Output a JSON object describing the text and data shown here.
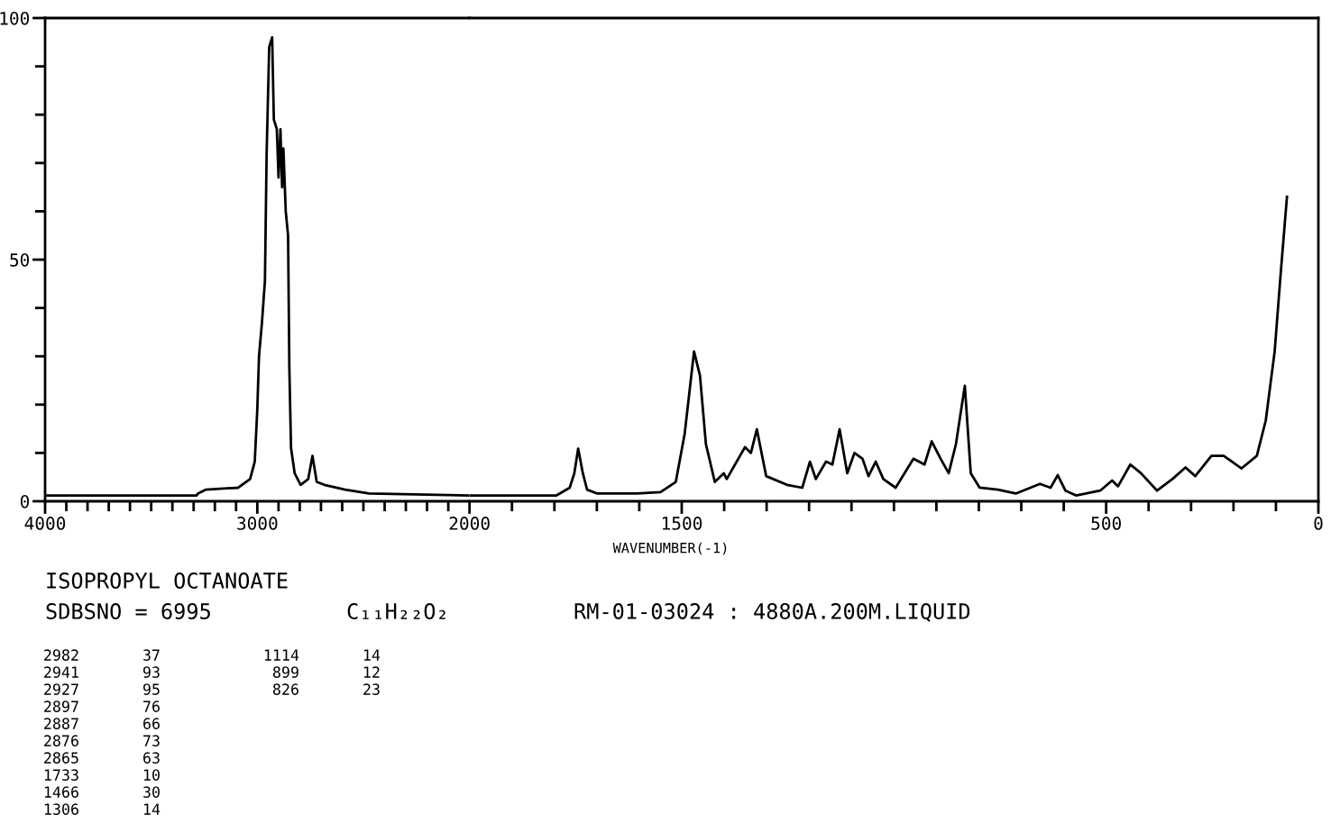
{
  "chart_data": [
    {
      "type": "line",
      "title": "ISOPROPYL OCTANOATE",
      "x": [
        4000,
        3286,
        3280,
        3244,
        3090,
        3034,
        3012,
        3000,
        2992,
        2978,
        2964,
        2956,
        2944,
        2930,
        2922,
        2908,
        2900,
        2891,
        2883,
        2877,
        2866,
        2855,
        2849,
        2841,
        2824,
        2796,
        2760,
        2740,
        2720,
        2684,
        2586,
        2474,
        2000
      ],
      "series": [
        {
          "color": "#000000",
          "values": [
            1.2,
            1.2,
            1.6,
            2.4,
            2.8,
            4.6,
            8.2,
            19,
            30,
            37,
            45.7,
            72,
            94,
            96,
            79,
            77,
            67,
            77,
            65,
            73,
            60,
            55,
            27.5,
            11,
            5.8,
            3.4,
            4.6,
            9.4,
            4,
            3.4,
            2.4,
            1.6,
            1.2
          ]
        }
      ],
      "xlim": [
        4000,
        2000
      ],
      "xticks": [
        4000,
        {
          "value": 3900,
          "label": null
        },
        {
          "value": 3800,
          "label": null
        },
        {
          "value": 3700,
          "label": null
        },
        {
          "value": 3600,
          "label": null
        },
        {
          "value": 3500,
          "label": null
        },
        {
          "value": 3400,
          "label": null
        },
        {
          "value": 3300,
          "label": null
        },
        {
          "value": 3200,
          "label": null
        },
        {
          "value": 3100,
          "label": null
        },
        3000,
        {
          "value": 2900,
          "label": null
        },
        {
          "value": 2800,
          "label": null
        },
        {
          "value": 2700,
          "label": null
        },
        {
          "value": 2600,
          "label": null
        },
        {
          "value": 2500,
          "label": null
        },
        {
          "value": 2400,
          "label": null
        },
        {
          "value": 2300,
          "label": null
        },
        {
          "value": 2200,
          "label": null
        },
        {
          "value": 2100,
          "label": null
        },
        2000
      ],
      "ylim": [
        0,
        100
      ],
      "yticks": [
        0,
        {
          "value": 10,
          "label": null
        },
        {
          "value": 20,
          "label": null
        },
        {
          "value": 30,
          "label": null
        },
        {
          "value": 40,
          "label": null
        },
        50,
        {
          "value": 60,
          "label": null
        },
        {
          "value": 70,
          "label": null
        },
        {
          "value": 80,
          "label": null
        },
        {
          "value": 90,
          "label": null
        },
        100
      ],
      "annotations": [
        "SDBSNO = 6995",
        "C₁₁H₂₂O₂",
        "RM-01-03024 : 4880A.200M.LIQUID",
        "2982",
        "37",
        "2941",
        "93",
        "2927",
        "95",
        "2897",
        "76",
        "2887",
        "66",
        "2876",
        "73",
        "2865",
        "63",
        "1733",
        "10",
        "1466",
        "30",
        "1306",
        "14",
        "1114",
        "14",
        "899",
        "12",
        "826",
        "23"
      ]
    },
    {
      "type": "line",
      "xlabel": "WAVENUMBER(-1)",
      "tick_labels": "x",
      "x": [
        2000,
        1795,
        1764,
        1753,
        1744,
        1733,
        1723,
        1699,
        1606,
        1550,
        1514,
        1493,
        1471,
        1457,
        1443,
        1422,
        1401,
        1394,
        1351,
        1337,
        1323,
        1316,
        1301,
        1252,
        1216,
        1198,
        1184,
        1160,
        1145,
        1128,
        1110,
        1093,
        1074,
        1060,
        1043,
        1025,
        996,
        954,
        928,
        911,
        890,
        871,
        854,
        833,
        819,
        798,
        755,
        713,
        656,
        631,
        614,
        596,
        571,
        514,
        486,
        472,
        443,
        418,
        380,
        344,
        313,
        290,
        252,
        223,
        181,
        145,
        124,
        103,
        89,
        74
      ],
      "series": [
        {
          "color": "#000000",
          "values": [
            1.2,
            1.2,
            2.8,
            5.8,
            10.9,
            5.8,
            2.4,
            1.6,
            1.6,
            1.9,
            4,
            14,
            31,
            26,
            11.8,
            4,
            5.8,
            4.6,
            11.2,
            10,
            14.9,
            11.8,
            5.2,
            3.4,
            2.8,
            8.2,
            4.6,
            8.2,
            7.6,
            14.9,
            5.8,
            10,
            8.8,
            5.2,
            8.2,
            4.6,
            2.8,
            8.8,
            7.6,
            12.4,
            8.8,
            5.8,
            11.8,
            23.9,
            5.8,
            2.8,
            2.4,
            1.6,
            3.6,
            2.8,
            5.4,
            2.2,
            1.2,
            2.2,
            4.3,
            3.1,
            7.6,
            5.8,
            2.2,
            4.6,
            7,
            5.2,
            9.4,
            9.4,
            6.8,
            9.4,
            16.7,
            31,
            46.9,
            63
          ]
        }
      ],
      "xlim": [
        2000,
        0
      ],
      "xticks": [
        {
          "value": 1900,
          "label": null
        },
        {
          "value": 1800,
          "label": null
        },
        {
          "value": 1700,
          "label": null
        },
        {
          "value": 1600,
          "label": null
        },
        1500,
        {
          "value": 1400,
          "label": null
        },
        {
          "value": 1300,
          "label": null
        },
        {
          "value": 1200,
          "label": null
        },
        {
          "value": 1100,
          "label": null
        },
        {
          "value": 1000,
          "label": null
        },
        {
          "value": 900,
          "label": null
        },
        {
          "value": 800,
          "label": null
        },
        {
          "value": 700,
          "label": null
        },
        {
          "value": 600,
          "label": null
        },
        500,
        {
          "value": 400,
          "label": null
        },
        {
          "value": 300,
          "label": null
        },
        {
          "value": 200,
          "label": null
        },
        {
          "value": 100,
          "label": null
        },
        0
      ],
      "ylim": [
        0,
        100
      ]
    }
  ]
}
